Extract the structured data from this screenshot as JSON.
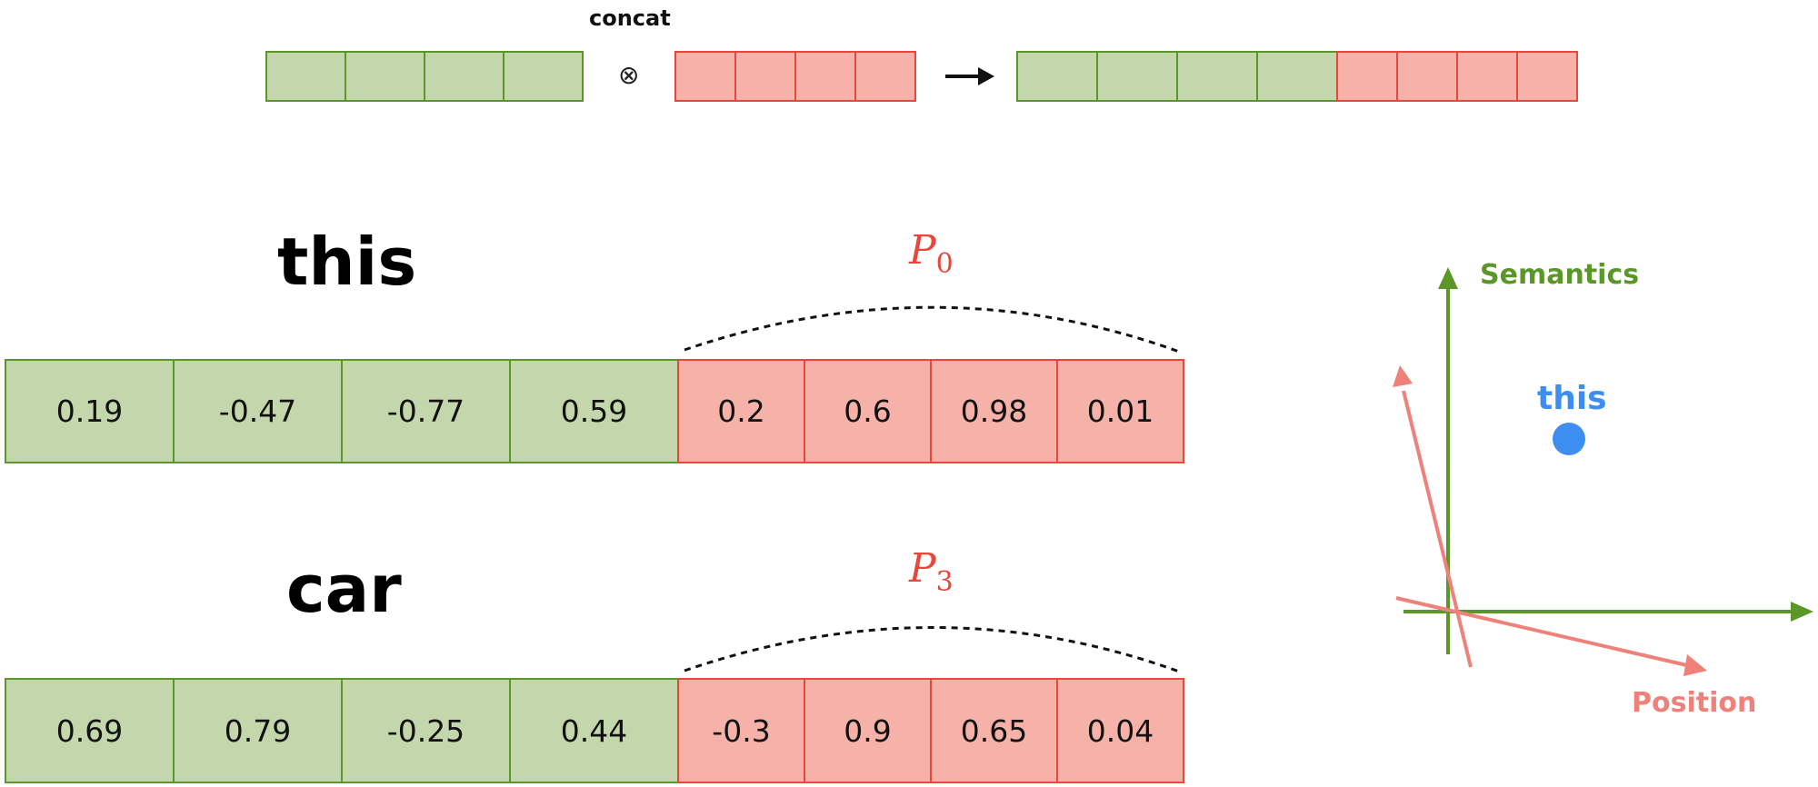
{
  "top": {
    "concat_label": "concat",
    "operator": "⊗",
    "left_block_cells": 4,
    "right_block_cells": 4
  },
  "rows": [
    {
      "word": "this",
      "position_label_base": "P",
      "position_label_sub": "0",
      "semantic_values": [
        "0.19",
        "-0.47",
        "-0.77",
        "0.59"
      ],
      "position_values": [
        "0.2",
        "0.6",
        "0.98",
        "0.01"
      ]
    },
    {
      "word": "car",
      "position_label_base": "P",
      "position_label_sub": "3",
      "semantic_values": [
        "0.69",
        "0.79",
        "-0.25",
        "0.44"
      ],
      "position_values": [
        "-0.3",
        "0.9",
        "0.65",
        "0.04"
      ]
    }
  ],
  "axes": {
    "semantics_label": "Semantics",
    "position_label": "Position",
    "point_label": "this"
  },
  "colors": {
    "semantic_fill": "#c4d6ab",
    "semantic_border": "#5b9728",
    "position_fill": "#f6b1a9",
    "position_border": "#e8473b",
    "point": "#3d8ef0",
    "position_axis": "#ef807a"
  }
}
